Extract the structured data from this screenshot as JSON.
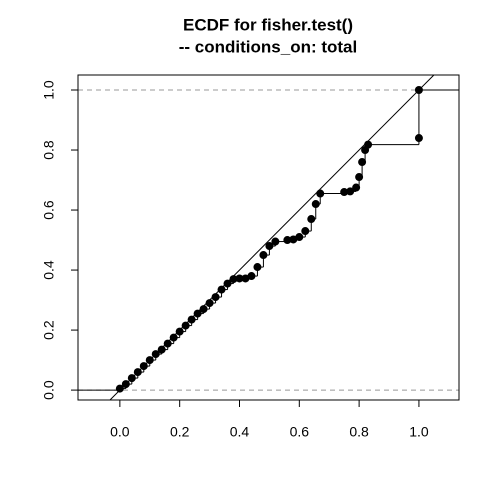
{
  "chart_data": {
    "type": "ecdf",
    "title": [
      "ECDF for fisher.test()",
      "-- conditions_on: total"
    ],
    "x": [
      0,
      0.02,
      0.04,
      0.06,
      0.08,
      0.1,
      0.12,
      0.14,
      0.16,
      0.18,
      0.2,
      0.22,
      0.24,
      0.26,
      0.28,
      0.3,
      0.32,
      0.34,
      0.36,
      0.38,
      0.4,
      0.42,
      0.44,
      0.46,
      0.48,
      0.5,
      0.52,
      0.56,
      0.58,
      0.6,
      0.62,
      0.64,
      0.655,
      0.67,
      0.75,
      0.77,
      0.79,
      0.8,
      0.81,
      0.82,
      0.83,
      1.0,
      1.0
    ],
    "values": [
      0.005,
      0.02,
      0.04,
      0.06,
      0.08,
      0.1,
      0.12,
      0.135,
      0.155,
      0.175,
      0.195,
      0.215,
      0.235,
      0.255,
      0.27,
      0.29,
      0.31,
      0.335,
      0.355,
      0.37,
      0.372,
      0.372,
      0.38,
      0.41,
      0.45,
      0.48,
      0.495,
      0.5,
      0.502,
      0.51,
      0.53,
      0.57,
      0.62,
      0.655,
      0.66,
      0.662,
      0.675,
      0.71,
      0.76,
      0.8,
      0.818,
      0.84,
      1.0
    ],
    "color": "#000000",
    "xlim": [
      -0.14,
      1.134
    ],
    "ylim": [
      -0.033,
      1.05
    ],
    "xticks": [
      {
        "value": 0,
        "label": "0.0"
      },
      {
        "value": 0.2,
        "label": "0.2"
      },
      {
        "value": 0.4,
        "label": "0.4"
      },
      {
        "value": 0.6,
        "label": "0.6"
      },
      {
        "value": 0.8,
        "label": "0.8"
      },
      {
        "value": 1,
        "label": "1.0"
      }
    ],
    "yticks": [
      {
        "value": 0,
        "label": "0.0"
      },
      {
        "value": 0.2,
        "label": "0.2"
      },
      {
        "value": 0.4,
        "label": "0.4"
      },
      {
        "value": 0.6,
        "label": "0.6"
      },
      {
        "value": 0.8,
        "label": "0.8"
      },
      {
        "value": 1,
        "label": "1.0"
      }
    ],
    "hlines": [
      0,
      1
    ]
  }
}
